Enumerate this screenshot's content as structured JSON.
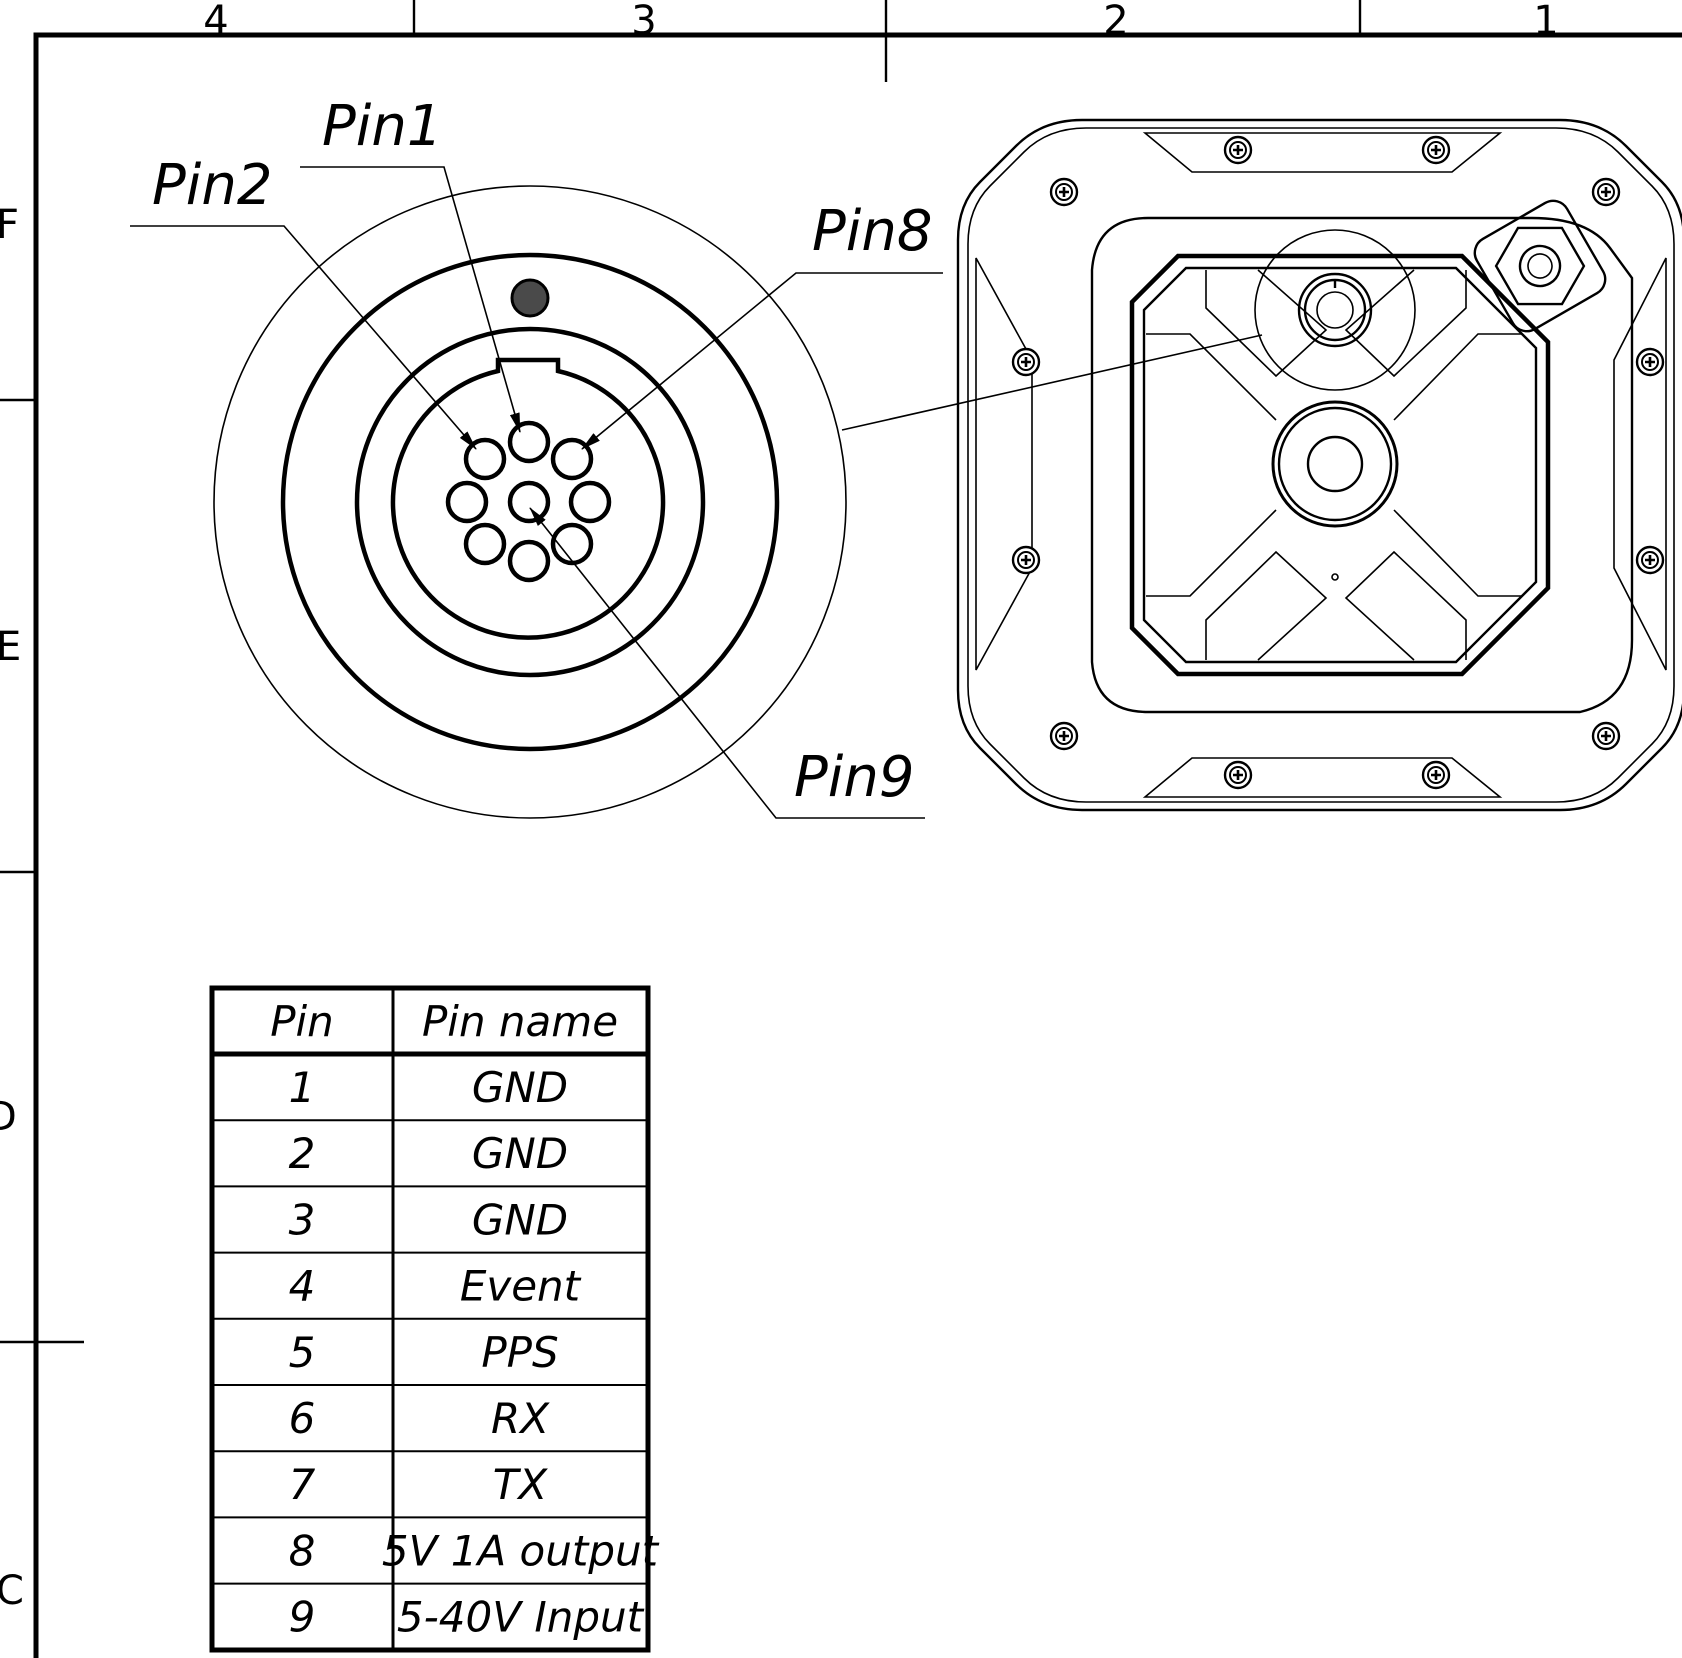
{
  "zones": {
    "columns": [
      "4",
      "3",
      "2",
      "1"
    ],
    "rows": [
      "F",
      "E",
      "D",
      "C"
    ]
  },
  "connector": {
    "labels": {
      "pin1": "Pin1",
      "pin2": "Pin2",
      "pin8": "Pin8",
      "pin9": "Pin9"
    }
  },
  "pin_table": {
    "headers": [
      "Pin",
      "Pin name"
    ],
    "rows": [
      {
        "pin": "1",
        "name": "GND"
      },
      {
        "pin": "2",
        "name": "GND"
      },
      {
        "pin": "3",
        "name": "GND"
      },
      {
        "pin": "4",
        "name": "Event"
      },
      {
        "pin": "5",
        "name": "PPS"
      },
      {
        "pin": "6",
        "name": "RX"
      },
      {
        "pin": "7",
        "name": "TX"
      },
      {
        "pin": "8",
        "name": "5V 1A output"
      },
      {
        "pin": "9",
        "name": "5-40V Input"
      }
    ]
  }
}
